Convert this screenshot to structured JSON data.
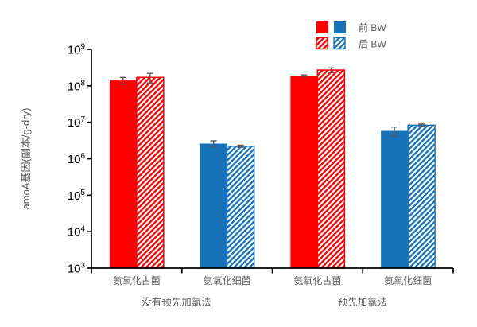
{
  "page": {
    "background_color": "#ffffff"
  },
  "chart_data": {
    "type": "bar",
    "y_scale": "log",
    "ylabel": "amoA基因(副本/g-dry)",
    "ylim": [
      1000.0,
      1000000000.0
    ],
    "y_tick_exponents": [
      3,
      4,
      5,
      6,
      7,
      8,
      9
    ],
    "grid": "off",
    "legend_position": "top-right",
    "axis_color": "#000000",
    "tick_label_color": "#000000",
    "label_color": "#595959",
    "error_bar_color": "#595959",
    "legend": [
      {
        "id": "pre-bw",
        "label": "前 BW",
        "style": "solid"
      },
      {
        "id": "post-bw",
        "label": "后 BW",
        "style": "hatched"
      }
    ],
    "groups": [
      {
        "id": "no-prechlorination",
        "group_label": "没有预先加氯法",
        "categories": [
          {
            "id": "aoa",
            "label": "氨氧化古菌",
            "color": "#ff0000",
            "bars": [
              {
                "series": "前 BW",
                "value": 140000000.0,
                "error": 30000000.0,
                "style": "solid"
              },
              {
                "series": "后 BW",
                "value": 170000000.0,
                "error": 50000000.0,
                "style": "hatched"
              }
            ]
          },
          {
            "id": "aob",
            "label": "氨氧化细菌",
            "color": "#1673ba",
            "bars": [
              {
                "series": "前 BW",
                "value": 2600000.0,
                "error": 500000.0,
                "style": "solid"
              },
              {
                "series": "后 BW",
                "value": 2200000.0,
                "error": 150000.0,
                "style": "hatched"
              }
            ]
          }
        ]
      },
      {
        "id": "prechlorination",
        "group_label": "预先加氯法",
        "categories": [
          {
            "id": "aoa",
            "label": "氨氧化古菌",
            "color": "#ff0000",
            "bars": [
              {
                "series": "前 BW",
                "value": 190000000.0,
                "error": 8000000.0,
                "style": "solid"
              },
              {
                "series": "后 BW",
                "value": 270000000.0,
                "error": 40000000.0,
                "style": "hatched"
              }
            ]
          },
          {
            "id": "aob",
            "label": "氨氧化细菌",
            "color": "#1673ba",
            "bars": [
              {
                "series": "前 BW",
                "value": 5800000.0,
                "error": 1600000.0,
                "style": "solid"
              },
              {
                "series": "后 BW",
                "value": 8300000.0,
                "error": 600000.0,
                "style": "hatched"
              }
            ]
          }
        ]
      }
    ]
  }
}
